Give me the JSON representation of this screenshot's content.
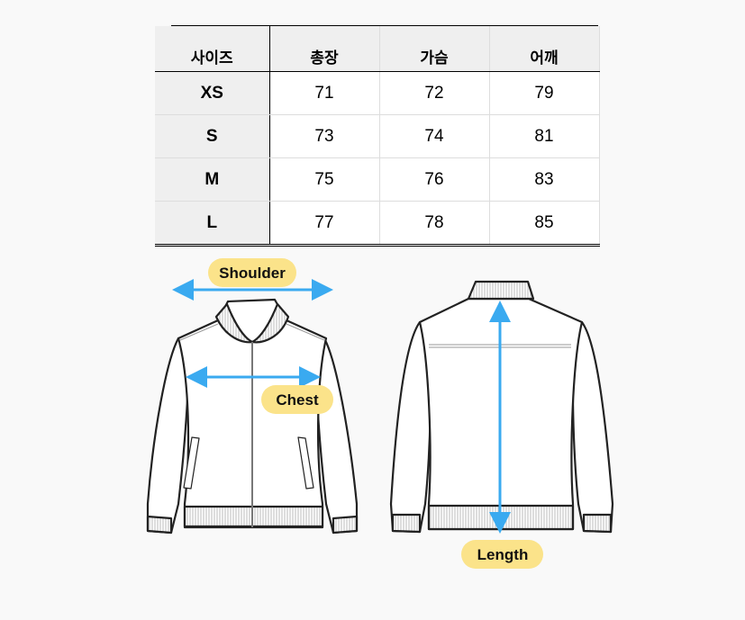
{
  "size_table": {
    "headers": [
      "사이즈",
      "총장",
      "가슴",
      "어깨"
    ],
    "rows": [
      {
        "size": "XS",
        "length": "71",
        "chest": "72",
        "shoulder": "79"
      },
      {
        "size": "S",
        "length": "73",
        "chest": "74",
        "shoulder": "81"
      },
      {
        "size": "M",
        "length": "75",
        "chest": "76",
        "shoulder": "83"
      },
      {
        "size": "L",
        "length": "77",
        "chest": "78",
        "shoulder": "85"
      }
    ]
  },
  "diagram": {
    "shoulder_label": "Shoulder",
    "chest_label": "Chest",
    "length_label": "Length",
    "arrow_color": "#3aaaf0",
    "label_bg_color": "#fbe38a"
  }
}
